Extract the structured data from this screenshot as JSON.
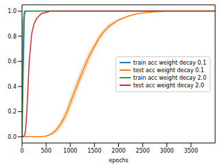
{
  "chart_data": {
    "type": "line",
    "xlabel": "epochs",
    "x": [
      0,
      25,
      50,
      75,
      100,
      150,
      200,
      250,
      300,
      400,
      500,
      600,
      700,
      800,
      900,
      1000,
      1100,
      1200,
      1300,
      1400,
      1500,
      1600,
      1700,
      1800,
      2000,
      2200,
      2400,
      2600,
      2800,
      3000,
      3500,
      4000
    ],
    "xlim": [
      0,
      4000
    ],
    "xticks": [
      0,
      500,
      1000,
      1500,
      2000,
      2500,
      3000,
      3500
    ],
    "ylim": [
      -0.05,
      1.05
    ],
    "yticks": [
      {
        "value": 0,
        "label": "0.0"
      },
      0.2,
      0.4,
      0.6,
      0.8,
      {
        "value": 1,
        "label": "1.0"
      }
    ],
    "grid": false,
    "legend": "center right",
    "series": [
      {
        "name": "train acc weight decay 0.1",
        "color": "#1f77b4",
        "values": [
          0,
          0.5,
          0.97,
          1,
          1,
          1,
          1,
          1,
          1,
          1,
          1,
          1,
          1,
          1,
          1,
          1,
          1,
          1,
          1,
          1,
          1,
          1,
          1,
          1,
          1,
          1,
          1,
          1,
          1,
          1,
          1,
          1
        ]
      },
      {
        "name": "test acc weight decay 0.1",
        "color": "#ff7f0e",
        "values": [
          0,
          0,
          0,
          0,
          0,
          0,
          0,
          0,
          0,
          0,
          0.005,
          0.02,
          0.05,
          0.1,
          0.17,
          0.27,
          0.37,
          0.47,
          0.56,
          0.65,
          0.72,
          0.79,
          0.84,
          0.88,
          0.93,
          0.96,
          0.98,
          0.99,
          0.995,
          1,
          1,
          1
        ],
        "lower": [
          0,
          0,
          0,
          0,
          0,
          0,
          0,
          0,
          0,
          0,
          0,
          0.01,
          0.03,
          0.07,
          0.13,
          0.22,
          0.32,
          0.42,
          0.51,
          0.61,
          0.69,
          0.76,
          0.82,
          0.86,
          0.92,
          0.955,
          0.975,
          0.985,
          0.99,
          1,
          1,
          1
        ],
        "upper": [
          0,
          0,
          0,
          0,
          0,
          0,
          0,
          0,
          0,
          0,
          0.01,
          0.03,
          0.07,
          0.13,
          0.21,
          0.32,
          0.42,
          0.52,
          0.61,
          0.69,
          0.75,
          0.82,
          0.86,
          0.9,
          0.94,
          0.965,
          0.985,
          0.995,
          1,
          1,
          1,
          1
        ]
      },
      {
        "name": "train acc weight decay 2.0",
        "color": "#2ca02c",
        "values": [
          0,
          0.92,
          1,
          1,
          1,
          1,
          1,
          1,
          1,
          1,
          1,
          1,
          1,
          1,
          1,
          1,
          1,
          1,
          1,
          1,
          1,
          1,
          1,
          1,
          1,
          1,
          1,
          1,
          1,
          1,
          1,
          1
        ]
      },
      {
        "name": "test acc weight decay 2.0",
        "color": "#d62728",
        "values": [
          0,
          0,
          0.01,
          0.05,
          0.2,
          0.6,
          0.82,
          0.9,
          0.94,
          0.98,
          0.99,
          1,
          1,
          1,
          1,
          1,
          1,
          1,
          1,
          1,
          1,
          1,
          1,
          1,
          1,
          1,
          1,
          1,
          1,
          1,
          1,
          1
        ]
      }
    ]
  }
}
